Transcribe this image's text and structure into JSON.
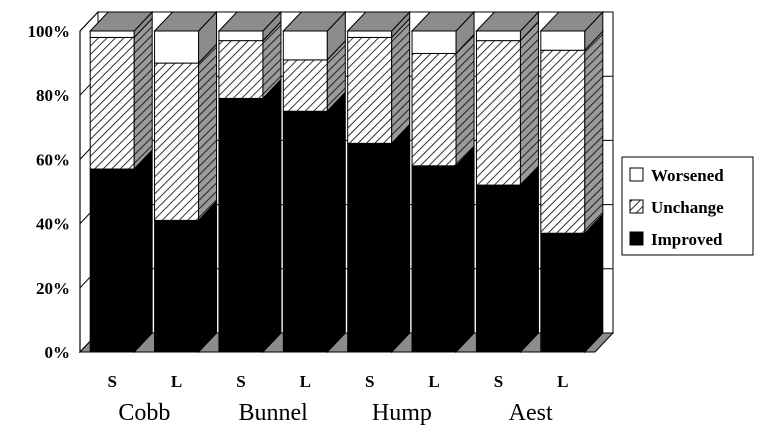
{
  "chart_data": {
    "type": "bar",
    "stacked": true,
    "three_d": true,
    "categories": [
      "S",
      "L",
      "S",
      "L",
      "S",
      "L",
      "S",
      "L"
    ],
    "groups": [
      {
        "label": "Cobb",
        "categories": [
          "S",
          "L"
        ]
      },
      {
        "label": "Bunnel",
        "categories": [
          "S",
          "L"
        ]
      },
      {
        "label": "Hump",
        "categories": [
          "S",
          "L"
        ]
      },
      {
        "label": "Aest",
        "categories": [
          "S",
          "L"
        ]
      }
    ],
    "series": [
      {
        "name": "Improved",
        "values": [
          57,
          41,
          79,
          75,
          65,
          58,
          52,
          37
        ],
        "fill": "black"
      },
      {
        "name": "Unchange",
        "values": [
          41,
          49,
          18,
          16,
          33,
          35,
          45,
          57
        ],
        "fill": "hatch"
      },
      {
        "name": "Worsened",
        "values": [
          2,
          10,
          3,
          9,
          2,
          7,
          3,
          6
        ],
        "fill": "white"
      }
    ],
    "y_ticks": [
      "0%",
      "20%",
      "40%",
      "60%",
      "80%",
      "100%"
    ],
    "ylim": [
      0,
      100
    ],
    "grid": true,
    "legend_position": "right",
    "colors": {
      "improved": "#000000",
      "unchange": "#ffffff",
      "worsened": "#ffffff",
      "floor": "#8c8c8c",
      "side": "#8c8c8c"
    }
  }
}
